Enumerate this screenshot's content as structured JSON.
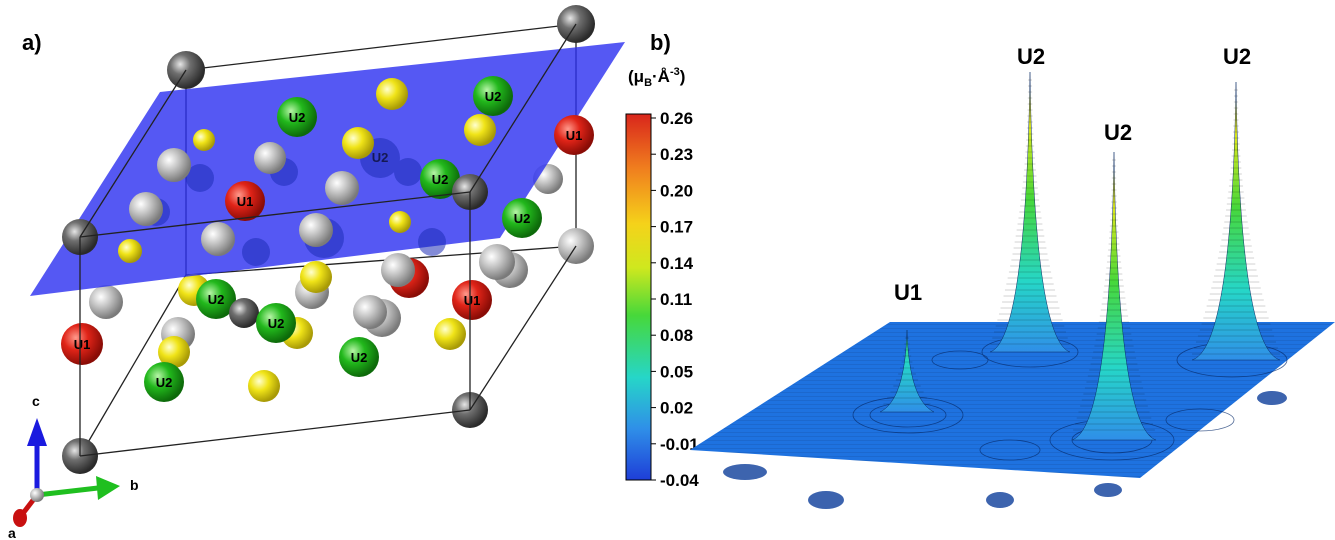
{
  "panel_a": {
    "label": "a)",
    "axes": {
      "a": "a",
      "b": "b",
      "c": "c"
    },
    "atom_labels": [
      "U1",
      "U2",
      "U1",
      "U2",
      "U2",
      "U2",
      "U1",
      "U2",
      "U1",
      "U2",
      "U2",
      "U2",
      "U2"
    ]
  },
  "panel_b": {
    "label": "b)",
    "colorbar": {
      "unit_main": "(μ",
      "unit_sub": "B",
      "unit_mid": "·Å",
      "unit_sup": "-3",
      "unit_end": ")",
      "ticks": [
        "0.26",
        "0.23",
        "0.20",
        "0.17",
        "0.14",
        "0.11",
        "0.08",
        "0.05",
        "0.02",
        "-0.01",
        "-0.04"
      ],
      "colors": [
        "#d9261c",
        "#f07f1e",
        "#f5d21a",
        "#cfe81e",
        "#47d83a",
        "#26d6c8",
        "#2f8fe8",
        "#1e3ed8"
      ]
    },
    "peaks": [
      {
        "label": "U1"
      },
      {
        "label": "U2"
      },
      {
        "label": "U2"
      },
      {
        "label": "U2"
      }
    ]
  }
}
